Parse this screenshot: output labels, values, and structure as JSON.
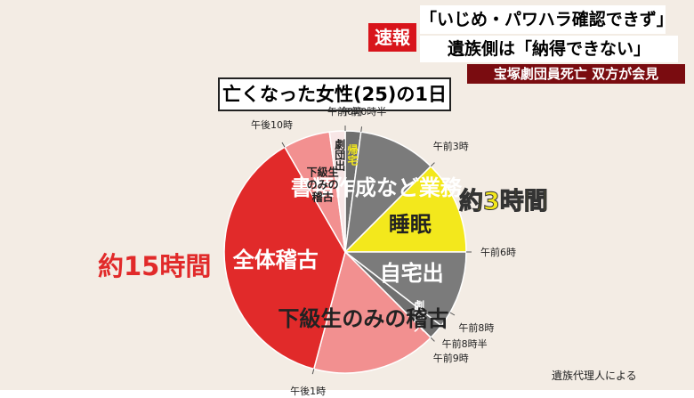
{
  "header": {
    "flash": "速報",
    "headline1": "「いじめ・パワハラ確認できず」",
    "headline2": "遺族側は「納得できない」",
    "ticker": "宝塚劇団員死亡 双方が会見"
  },
  "chart_data": {
    "type": "pie",
    "title": "亡くなった女性(25)の1日",
    "categories": [
      "帰宅",
      "書類作成など業務",
      "睡眠",
      "自宅出",
      "劇団入",
      "下級生のみの稽古",
      "全体稽古",
      "下級生のみの稽古",
      "劇団出"
    ],
    "values": [
      0.5,
      2.5,
      3,
      2.5,
      0.5,
      4,
      9,
      1.5,
      0.5
    ],
    "colors": [
      "#6f6f6f",
      "#7b7b7b",
      "#f3e81c",
      "#7b7b7b",
      "#6f6f6f",
      "#f29090",
      "#e12a2a",
      "#f29090",
      "#f7e6e6"
    ],
    "ticks": [
      {
        "value": 0,
        "label": "午前0時"
      },
      {
        "value": 0.5,
        "label": "午前0時半"
      },
      {
        "value": 3,
        "label": "午前3時"
      },
      {
        "value": 6,
        "label": "午前6時"
      },
      {
        "value": 8,
        "label": "午前8時"
      },
      {
        "value": 8.5,
        "label": "午前8時半"
      },
      {
        "value": 9,
        "label": "午前9時"
      },
      {
        "value": 13,
        "label": "午後1時"
      },
      {
        "value": 22,
        "label": "午後10時"
      }
    ],
    "annotations": [
      "約3時間",
      "約15時間"
    ],
    "source": "遺族代理人による"
  }
}
